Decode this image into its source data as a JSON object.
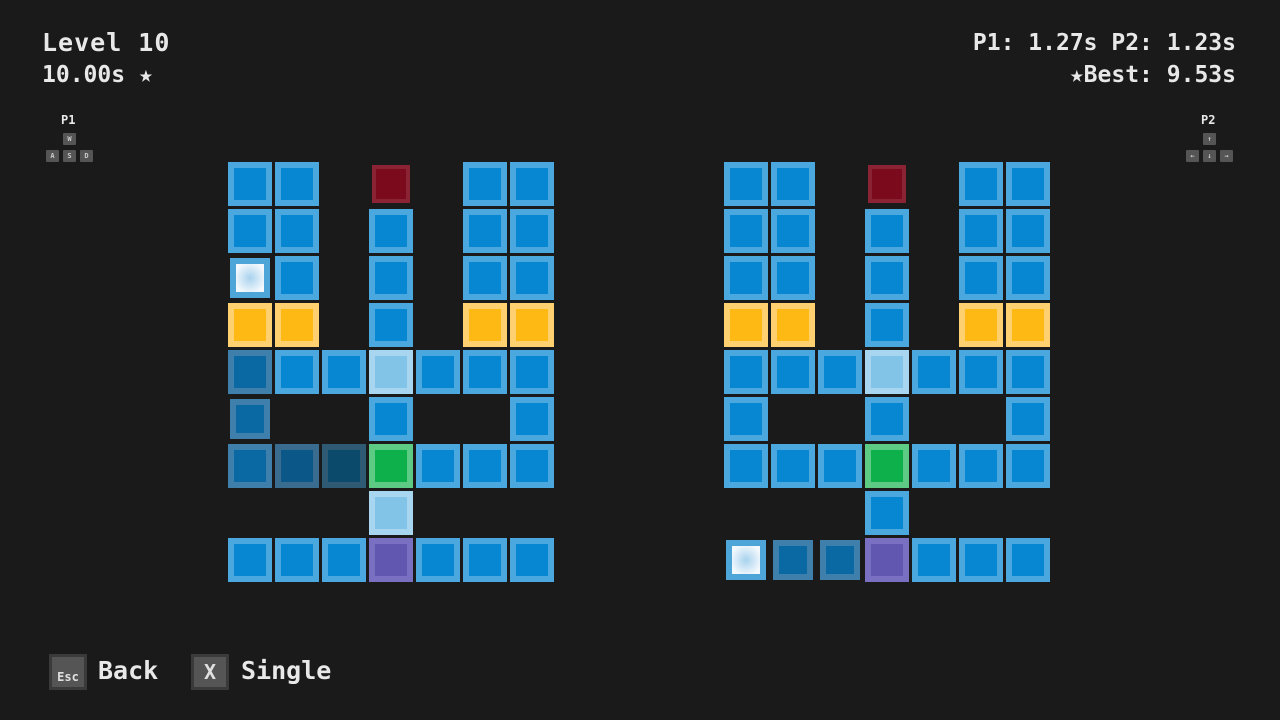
{
  "hud": {
    "level": "Level 10",
    "target_time": "10.00s",
    "player_times": "P1: 1.27s P2: 1.23s",
    "best": "Best: 9.53s"
  },
  "controls": {
    "p1": {
      "label": "P1",
      "keys": [
        "W",
        "A",
        "S",
        "D"
      ]
    },
    "p2": {
      "label": "P2",
      "keys": [
        "↑",
        "←",
        "↓",
        "→"
      ]
    }
  },
  "footer": {
    "back_key": "Esc",
    "back_label": "Back",
    "single_key": "X",
    "single_label": "Single"
  },
  "tile_legend": {
    "B": "blue",
    "W": "player",
    "Y": "yellow",
    "R": "red",
    "L": "light-blue",
    "G": "green",
    "P": "purple",
    "1": "visited",
    "2": "visited-darker",
    "3": "visited-darkest",
    ".": "empty"
  },
  "colors": {
    "B": [
      "#4aa8de",
      "#0787d2"
    ],
    "W": [
      "#4ea6d8",
      "#f2f8fc"
    ],
    "Y": [
      "#ffd070",
      "#ffb914"
    ],
    "R": [
      "#8a2333",
      "#7b0a1c"
    ],
    "L": [
      "#a8d6f0",
      "#82c3e8"
    ],
    "G": [
      "#5ecb84",
      "#0db04b"
    ],
    "P": [
      "#7a70c2",
      "#6257b0"
    ],
    "1": [
      "#3e80ab",
      "#0a68a2"
    ],
    "2": [
      "#396c8e",
      "#0b5888"
    ],
    "3": [
      "#2f5a74",
      "#0c4a6c"
    ],
    "background": "#1a1a1a"
  },
  "boards": {
    "p1": [
      "BB.R.BB",
      "BB.B.BB",
      "WB.B.BB",
      "YY.B.YY",
      "1BBLBBB",
      "1..B..B",
      "123GBBB",
      "...L...",
      "BBBPBBB"
    ],
    "p2": [
      "BB.R.BB",
      "BB.B.BB",
      "BB.B.BB",
      "YY.B.YY",
      "BBBLBBB",
      "B..B..B",
      "BBBGBBB",
      "...B...",
      "W11PBBB"
    ]
  }
}
